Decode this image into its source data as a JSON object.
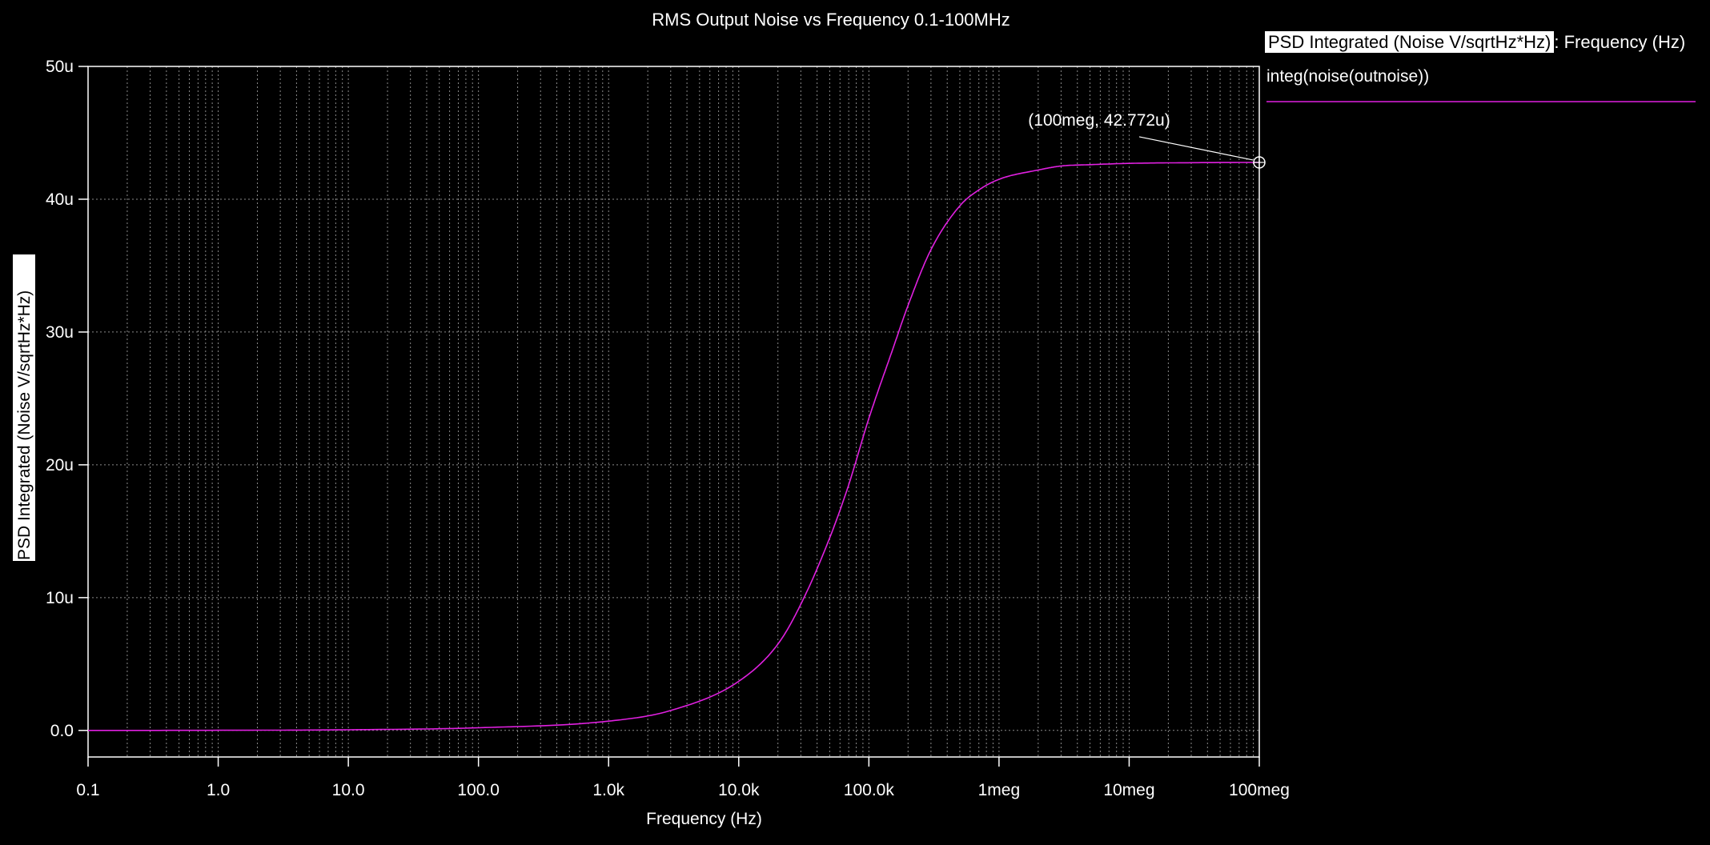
{
  "chart_data": {
    "type": "line",
    "title": "RMS Output Noise vs Frequency 0.1-100MHz",
    "xlabel": "Frequency (Hz)",
    "ylabel": "PSD Integrated (Noise V/sqrtHz*Hz)",
    "xscale": "log",
    "xlim": [
      0.1,
      100000000
    ],
    "ylim": [
      -2e-06,
      5e-05
    ],
    "grid": true,
    "x_ticks": [
      {
        "value": 0.1,
        "label": "0.1"
      },
      {
        "value": 1,
        "label": "1.0"
      },
      {
        "value": 10,
        "label": "10.0"
      },
      {
        "value": 100,
        "label": "100.0"
      },
      {
        "value": 1000,
        "label": "1.0k"
      },
      {
        "value": 10000,
        "label": "10.0k"
      },
      {
        "value": 100000,
        "label": "100.0k"
      },
      {
        "value": 1000000,
        "label": "1meg"
      },
      {
        "value": 10000000,
        "label": "10meg"
      },
      {
        "value": 100000000,
        "label": "100meg"
      }
    ],
    "y_ticks": [
      {
        "value": 0,
        "label": "0.0"
      },
      {
        "value": 1e-05,
        "label": "10u"
      },
      {
        "value": 2e-05,
        "label": "20u"
      },
      {
        "value": 3e-05,
        "label": "30u"
      },
      {
        "value": 4e-05,
        "label": "40u"
      },
      {
        "value": 5e-05,
        "label": "50u"
      }
    ],
    "series": [
      {
        "name": "integ(noise(outnoise))",
        "color": "#e020e0",
        "x": [
          0.1,
          1,
          10,
          100,
          1000,
          3000,
          10000,
          20000,
          30000,
          50000,
          70000,
          100000,
          150000,
          200000,
          300000,
          500000,
          700000,
          1000000,
          2000000,
          3000000,
          5000000,
          10000000,
          30000000,
          100000000
        ],
        "y": [
          0,
          1e-08,
          5e-08,
          2e-07,
          7e-07,
          1.5e-06,
          3.7e-06,
          6.5e-06,
          9.5e-06,
          1.45e-05,
          1.85e-05,
          2.35e-05,
          2.85e-05,
          3.2e-05,
          3.62e-05,
          3.95e-05,
          4.07e-05,
          4.15e-05,
          4.22e-05,
          4.25e-05,
          4.26e-05,
          4.27e-05,
          4.275e-05,
          4.2772e-05
        ]
      }
    ],
    "annotations": [
      {
        "x": 100000000,
        "y": 4.2772e-05,
        "label": "(100meg, 42.772u)"
      }
    ],
    "legend": {
      "header_highlight": "PSD Integrated (Noise V/sqrtHz*Hz)",
      "header_rest": ": Frequency (Hz)",
      "position": "top-right"
    }
  }
}
